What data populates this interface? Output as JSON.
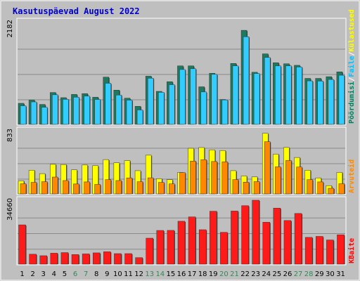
{
  "chart_data": {
    "title": "Kasutuspäevad August 2022",
    "type": "bar",
    "categories": [
      "1",
      "2",
      "3",
      "4",
      "5",
      "6",
      "7",
      "8",
      "9",
      "10",
      "11",
      "12",
      "13",
      "14",
      "15",
      "16",
      "17",
      "18",
      "19",
      "20",
      "21",
      "22",
      "23",
      "24",
      "25",
      "26",
      "27",
      "28",
      "29",
      "30",
      "31"
    ],
    "weekend_days": [
      "6",
      "7",
      "13",
      "14",
      "20",
      "21",
      "27",
      "28"
    ],
    "panels": [
      {
        "id": "top",
        "ymax": 2182,
        "ymax_label": "2182",
        "legend": [
          {
            "text": "Pöördumisi",
            "color": "#007f5f"
          },
          {
            "text": "/",
            "color": "#ffffff"
          },
          {
            "text": "Faile",
            "color": "#00bfff"
          },
          {
            "text": "/",
            "color": "#ffffff"
          },
          {
            "text": "Külastused",
            "color": "#ffff00"
          }
        ],
        "series": [
          {
            "name": "Pöördumisi",
            "color": "#1e7a5f",
            "values": [
              448,
              516,
              424,
              678,
              568,
              637,
              654,
              577,
              1005,
              728,
              557,
              384,
              1025,
              702,
              907,
              1244,
              1244,
              799,
              1086,
              530,
              1296,
              2001,
              1108,
              1500,
              1311,
              1289,
              1256,
              978,
              978,
              1014,
              1117
            ]
          },
          {
            "name": "Faile",
            "color": "#33ccff",
            "values": [
              395,
              478,
              364,
              630,
              533,
              578,
              601,
              530,
              874,
              623,
              516,
              307,
              982,
              681,
              844,
              1167,
              1184,
              690,
              1064,
              520,
              1244,
              1864,
              1082,
              1423,
              1244,
              1245,
              1220,
              925,
              921,
              955,
              1045
            ]
          }
        ],
        "gridlines": 4
      },
      {
        "id": "middle",
        "ymax": 833,
        "ymax_label": "833",
        "legend": [
          {
            "text": "Arvuteid",
            "color": "#ff8800"
          }
        ],
        "series": [
          {
            "name": "Külastused",
            "color": "#ffff00",
            "values": [
              172,
              312,
              267,
              390,
              387,
              317,
              381,
              372,
              452,
              410,
              439,
              306,
              510,
              200,
              188,
              282,
              601,
              611,
              580,
              572,
              306,
              236,
              224,
              798,
              524,
              612,
              480,
              312,
              211,
              109,
              283
            ]
          },
          {
            "name": "Arvuteid",
            "color": "#ff8800",
            "values": [
              134,
              152,
              161,
              222,
              176,
              131,
              158,
              125,
              188,
              176,
              211,
              161,
              212,
              152,
              132,
              280,
              432,
              451,
              427,
              422,
              189,
              155,
              162,
              688,
              357,
              440,
              354,
              188,
              158,
              74,
              134
            ]
          }
        ],
        "gridlines": 4
      },
      {
        "id": "bottom",
        "ymax": 34660,
        "ymax_label": "34660",
        "legend": [
          {
            "text": "KBaite",
            "color": "#ff0000"
          }
        ],
        "series": [
          {
            "name": "KBaite",
            "color": "#ff1a1a",
            "values": [
              21300,
              5380,
              4580,
              5950,
              6270,
              5200,
              5550,
              6120,
              6720,
              5710,
              5710,
              3540,
              14090,
              18270,
              18310,
              23260,
              25620,
              18670,
              28710,
              17260,
              28800,
              31700,
              34660,
              22730,
              30380,
              23660,
              27480,
              14520,
              15050,
              13120,
              15920
            ]
          }
        ],
        "gridlines": 4
      }
    ]
  }
}
